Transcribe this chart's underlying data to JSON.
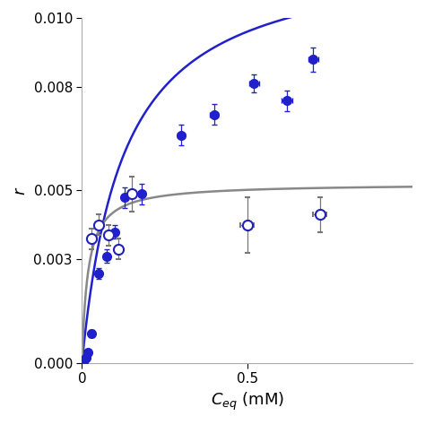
{
  "xlabel": "$C_{eq}$ (mM)",
  "ylabel": "$r$",
  "xlim": [
    0,
    1.0
  ],
  "ylim": [
    0,
    0.01
  ],
  "yticks": [
    0.0,
    0.003,
    0.005,
    0.008,
    0.01
  ],
  "xticks": [
    0.0,
    0.5
  ],
  "blue_filled_x": [
    0.005,
    0.008,
    0.012,
    0.018,
    0.03,
    0.05,
    0.075,
    0.1,
    0.13,
    0.18,
    0.3,
    0.4,
    0.52,
    0.62,
    0.7
  ],
  "blue_filled_y": [
    5e-05,
    0.0001,
    0.00015,
    0.0003,
    0.00085,
    0.0026,
    0.0031,
    0.0038,
    0.0048,
    0.0049,
    0.0066,
    0.0072,
    0.0081,
    0.0076,
    0.0088
  ],
  "blue_filled_yerr": [
    4e-05,
    4e-05,
    4e-05,
    6e-05,
    0.0001,
    0.00015,
    0.0002,
    0.0002,
    0.0003,
    0.0003,
    0.0003,
    0.0003,
    0.00025,
    0.0003,
    0.00035
  ],
  "blue_filled_xerr": [
    0.001,
    0.001,
    0.001,
    0.001,
    0.002,
    0.003,
    0.004,
    0.005,
    0.006,
    0.008,
    0.01,
    0.012,
    0.015,
    0.015,
    0.015
  ],
  "grey_open_x": [
    0.03,
    0.05,
    0.08,
    0.11,
    0.15,
    0.5,
    0.72
  ],
  "grey_open_y": [
    0.0036,
    0.004,
    0.0037,
    0.0033,
    0.0049,
    0.004,
    0.0043
  ],
  "grey_open_yerr": [
    0.0003,
    0.0003,
    0.0003,
    0.0003,
    0.0005,
    0.0008,
    0.0005
  ],
  "grey_open_xerr": [
    0.003,
    0.004,
    0.005,
    0.006,
    0.008,
    0.02,
    0.02
  ],
  "blue_curve_color": "#2020cc",
  "grey_curve_color": "#888888",
  "blue_langmuir_qmax": 0.012,
  "blue_langmuir_K": 8.0,
  "grey_langmuir_qmax": 0.0052,
  "grey_langmuir_K": 55.0,
  "marker_size": 7,
  "linewidth": 1.8,
  "capsize": 2
}
